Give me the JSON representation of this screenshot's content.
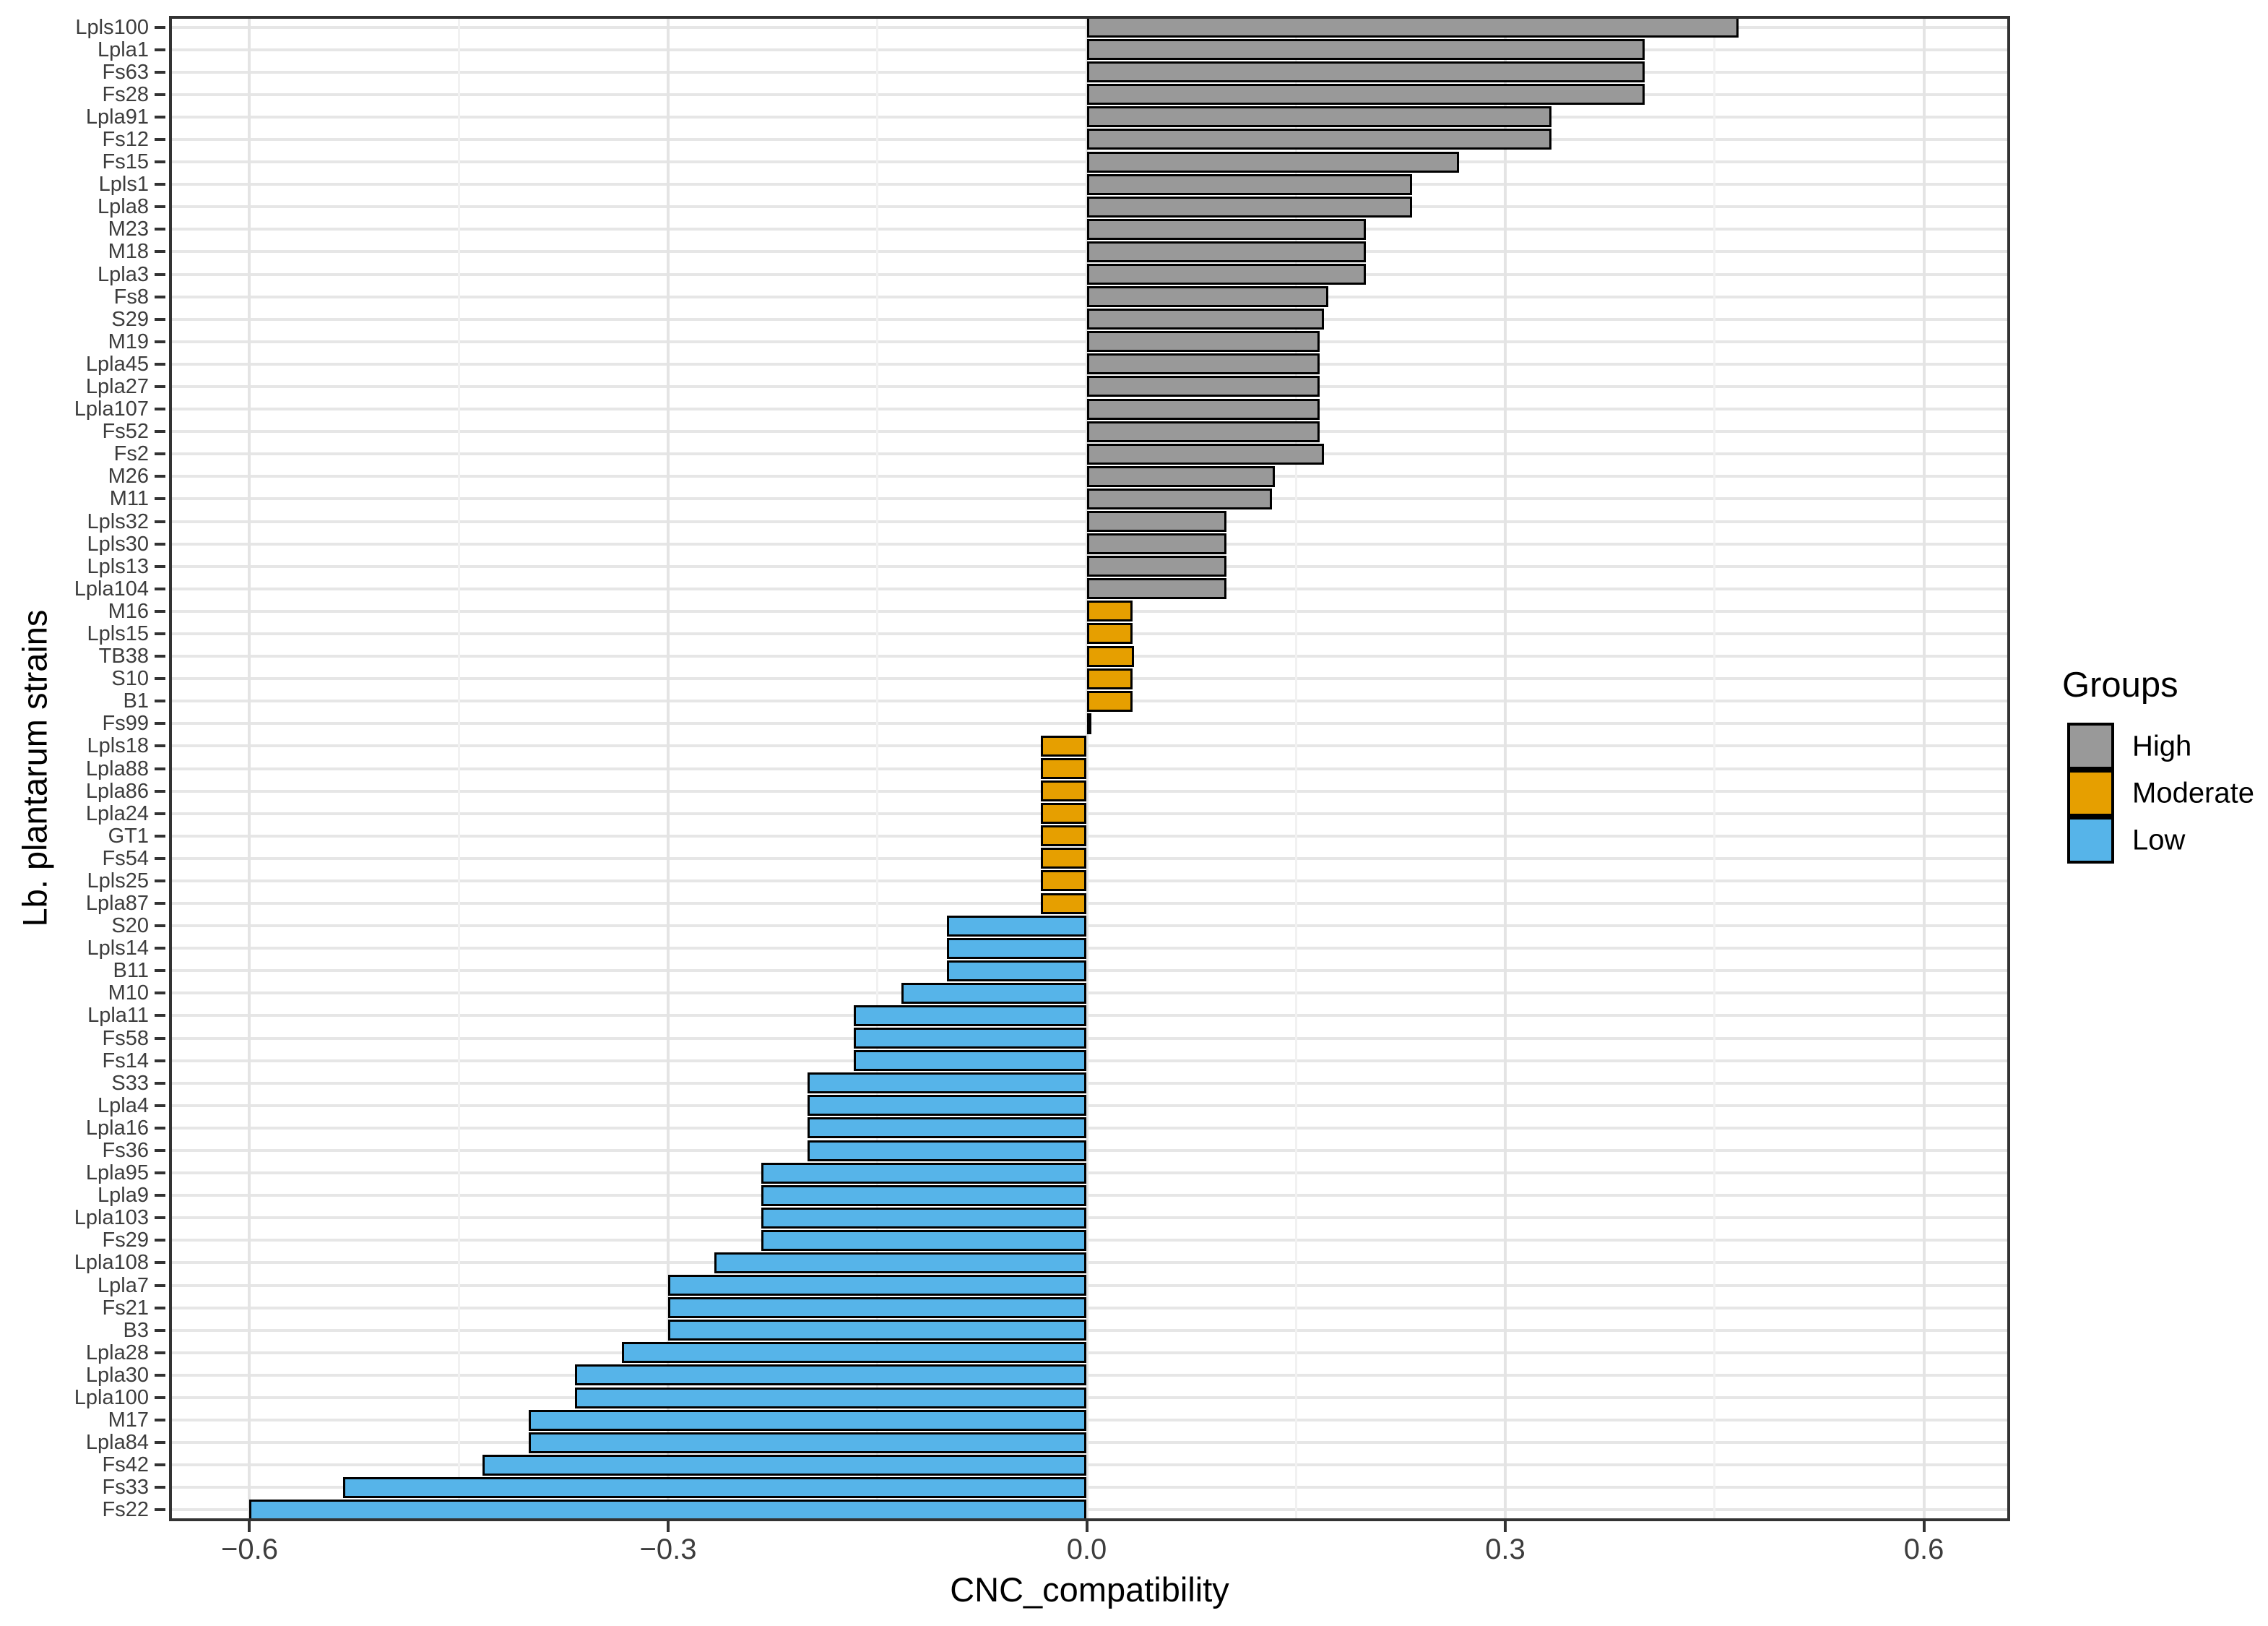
{
  "legend": {
    "title": "Groups",
    "entries": [
      {
        "label": "High",
        "color": "#999999"
      },
      {
        "label": "Moderate",
        "color": "#E69F00"
      },
      {
        "label": "Low",
        "color": "#56B4E9"
      }
    ]
  },
  "colors": {
    "high": "#999999",
    "moderate": "#E69F00",
    "low": "#56B4E9",
    "bar_outline": "#000000",
    "panel_border": "#333333",
    "grid_major": "#e4e4e4",
    "background": "#ffffff"
  },
  "chart_data": {
    "type": "bar",
    "orientation": "horizontal",
    "title": "",
    "xlabel": "CNC_compatibility",
    "ylabel": "Lb. plantarum strains",
    "xlim": [
      -0.66,
      0.66
    ],
    "grid": true,
    "legend_position": "right",
    "x_ticks": [
      {
        "value": -0.6,
        "label": "−0.6"
      },
      {
        "value": -0.3,
        "label": "−0.3"
      },
      {
        "value": 0.0,
        "label": "0.0"
      },
      {
        "value": 0.3,
        "label": "0.3"
      },
      {
        "value": 0.6,
        "label": "0.6"
      }
    ],
    "x_minor_ticks": [
      -0.45,
      -0.15,
      0.15,
      0.45
    ],
    "bars": [
      {
        "strain": "Lpls100",
        "value": 0.467,
        "group": "High"
      },
      {
        "strain": "Lpla1",
        "value": 0.4,
        "group": "High"
      },
      {
        "strain": "Fs63",
        "value": 0.4,
        "group": "High"
      },
      {
        "strain": "Fs28",
        "value": 0.4,
        "group": "High"
      },
      {
        "strain": "Lpla91",
        "value": 0.333,
        "group": "High"
      },
      {
        "strain": "Fs12",
        "value": 0.333,
        "group": "High"
      },
      {
        "strain": "Fs15",
        "value": 0.267,
        "group": "High"
      },
      {
        "strain": "Lpls1",
        "value": 0.233,
        "group": "High"
      },
      {
        "strain": "Lpla8",
        "value": 0.233,
        "group": "High"
      },
      {
        "strain": "M23",
        "value": 0.2,
        "group": "High"
      },
      {
        "strain": "M18",
        "value": 0.2,
        "group": "High"
      },
      {
        "strain": "Lpla3",
        "value": 0.2,
        "group": "High"
      },
      {
        "strain": "Fs8",
        "value": 0.173,
        "group": "High"
      },
      {
        "strain": "S29",
        "value": 0.17,
        "group": "High"
      },
      {
        "strain": "M19",
        "value": 0.167,
        "group": "High"
      },
      {
        "strain": "Lpla45",
        "value": 0.167,
        "group": "High"
      },
      {
        "strain": "Lpla27",
        "value": 0.167,
        "group": "High"
      },
      {
        "strain": "Lpla107",
        "value": 0.167,
        "group": "High"
      },
      {
        "strain": "Fs52",
        "value": 0.167,
        "group": "High"
      },
      {
        "strain": "Fs2",
        "value": 0.17,
        "group": "High"
      },
      {
        "strain": "M26",
        "value": 0.135,
        "group": "High"
      },
      {
        "strain": "M11",
        "value": 0.133,
        "group": "High"
      },
      {
        "strain": "Lpls32",
        "value": 0.1,
        "group": "High"
      },
      {
        "strain": "Lpls30",
        "value": 0.1,
        "group": "High"
      },
      {
        "strain": "Lpls13",
        "value": 0.1,
        "group": "High"
      },
      {
        "strain": "Lpla104",
        "value": 0.1,
        "group": "High"
      },
      {
        "strain": "M16",
        "value": 0.033,
        "group": "Moderate"
      },
      {
        "strain": "Lpls15",
        "value": 0.033,
        "group": "Moderate"
      },
      {
        "strain": "TB38",
        "value": 0.034,
        "group": "Moderate"
      },
      {
        "strain": "S10",
        "value": 0.033,
        "group": "Moderate"
      },
      {
        "strain": "B1",
        "value": 0.033,
        "group": "Moderate"
      },
      {
        "strain": "Fs99",
        "value": 0.002,
        "group": "Moderate"
      },
      {
        "strain": "Lpls18",
        "value": -0.033,
        "group": "Moderate"
      },
      {
        "strain": "Lpla88",
        "value": -0.033,
        "group": "Moderate"
      },
      {
        "strain": "Lpla86",
        "value": -0.033,
        "group": "Moderate"
      },
      {
        "strain": "Lpla24",
        "value": -0.033,
        "group": "Moderate"
      },
      {
        "strain": "GT1",
        "value": -0.033,
        "group": "Moderate"
      },
      {
        "strain": "Fs54",
        "value": -0.033,
        "group": "Moderate"
      },
      {
        "strain": "Lpls25",
        "value": -0.033,
        "group": "Moderate"
      },
      {
        "strain": "Lpla87",
        "value": -0.033,
        "group": "Moderate"
      },
      {
        "strain": "S20",
        "value": -0.1,
        "group": "Low"
      },
      {
        "strain": "Lpls14",
        "value": -0.1,
        "group": "Low"
      },
      {
        "strain": "B11",
        "value": -0.1,
        "group": "Low"
      },
      {
        "strain": "M10",
        "value": -0.133,
        "group": "Low"
      },
      {
        "strain": "Lpla11",
        "value": -0.167,
        "group": "Low"
      },
      {
        "strain": "Fs58",
        "value": -0.167,
        "group": "Low"
      },
      {
        "strain": "Fs14",
        "value": -0.167,
        "group": "Low"
      },
      {
        "strain": "S33",
        "value": -0.2,
        "group": "Low"
      },
      {
        "strain": "Lpla4",
        "value": -0.2,
        "group": "Low"
      },
      {
        "strain": "Lpla16",
        "value": -0.2,
        "group": "Low"
      },
      {
        "strain": "Fs36",
        "value": -0.2,
        "group": "Low"
      },
      {
        "strain": "Lpla95",
        "value": -0.233,
        "group": "Low"
      },
      {
        "strain": "Lpla9",
        "value": -0.233,
        "group": "Low"
      },
      {
        "strain": "Lpla103",
        "value": -0.233,
        "group": "Low"
      },
      {
        "strain": "Fs29",
        "value": -0.233,
        "group": "Low"
      },
      {
        "strain": "Lpla108",
        "value": -0.267,
        "group": "Low"
      },
      {
        "strain": "Lpla7",
        "value": -0.3,
        "group": "Low"
      },
      {
        "strain": "Fs21",
        "value": -0.3,
        "group": "Low"
      },
      {
        "strain": "B3",
        "value": -0.3,
        "group": "Low"
      },
      {
        "strain": "Lpla28",
        "value": -0.333,
        "group": "Low"
      },
      {
        "strain": "Lpla30",
        "value": -0.367,
        "group": "Low"
      },
      {
        "strain": "Lpla100",
        "value": -0.367,
        "group": "Low"
      },
      {
        "strain": "M17",
        "value": -0.4,
        "group": "Low"
      },
      {
        "strain": "Lpla84",
        "value": -0.4,
        "group": "Low"
      },
      {
        "strain": "Fs42",
        "value": -0.433,
        "group": "Low"
      },
      {
        "strain": "Fs33",
        "value": -0.533,
        "group": "Low"
      },
      {
        "strain": "Fs22",
        "value": -0.6,
        "group": "Low"
      }
    ]
  }
}
